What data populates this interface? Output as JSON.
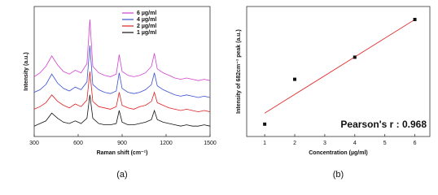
{
  "chart_data": [
    {
      "type": "line",
      "caption": "(a)",
      "xlabel": "Raman shift (cm⁻¹)",
      "ylabel": "Intensity (a.u.)",
      "x": [
        300,
        340,
        380,
        420,
        460,
        500,
        540,
        580,
        620,
        660,
        680,
        700,
        740,
        780,
        820,
        860,
        880,
        900,
        940,
        980,
        1020,
        1060,
        1100,
        1120,
        1140,
        1180,
        1220,
        1260,
        1300,
        1340,
        1380,
        1420,
        1460,
        1500
      ],
      "series": [
        {
          "name": "6 µg/ml",
          "color": "#d040d0",
          "values": [
            46,
            49,
            54,
            62,
            55,
            50,
            48,
            51,
            49,
            56,
            90,
            54,
            49,
            47,
            46,
            48,
            63,
            50,
            47,
            46,
            47,
            49,
            54,
            64,
            52,
            49,
            47,
            45,
            44,
            45,
            44,
            43,
            44,
            43
          ]
        },
        {
          "name": "4 µg/ml",
          "color": "#3a4fd0",
          "values": [
            34,
            36,
            40,
            48,
            41,
            37,
            35,
            38,
            36,
            42,
            70,
            40,
            36,
            34,
            33,
            35,
            49,
            37,
            34,
            33,
            34,
            36,
            40,
            49,
            39,
            36,
            34,
            32,
            31,
            32,
            31,
            30,
            31,
            30
          ]
        },
        {
          "name": "2 µg/ml",
          "color": "#e02020",
          "values": [
            21,
            23,
            26,
            32,
            27,
            24,
            22,
            25,
            23,
            28,
            50,
            27,
            23,
            22,
            21,
            23,
            34,
            24,
            22,
            21,
            23,
            24,
            27,
            34,
            26,
            24,
            22,
            21,
            20,
            21,
            20,
            19,
            20,
            19
          ]
        },
        {
          "name": "1 µg/ml",
          "color": "#111111",
          "values": [
            8,
            10,
            12,
            18,
            14,
            11,
            10,
            12,
            10,
            14,
            32,
            14,
            10,
            9,
            9,
            10,
            20,
            11,
            9,
            9,
            10,
            11,
            13,
            20,
            13,
            11,
            10,
            9,
            8,
            9,
            8,
            8,
            9,
            8
          ]
        }
      ],
      "xlim": [
        300,
        1500
      ],
      "xticks": [
        300,
        600,
        900,
        1200,
        1500
      ],
      "ylim": [
        0,
        100
      ]
    },
    {
      "type": "scatter",
      "caption": "(b)",
      "xlabel": "Concentration (µg/ml)",
      "ylabel": "Intensity of 682cm⁻¹ peak (a.u.)",
      "annotation": "Pearson's r : 0.968",
      "x": [
        1,
        2,
        4,
        6
      ],
      "values": [
        9.5,
        44,
        61,
        90
      ],
      "color": "#111111",
      "fit": {
        "x": [
          1,
          6
        ],
        "values": [
          18,
          90
        ],
        "color": "#e03030"
      },
      "xlim": [
        0.4,
        6.5
      ],
      "xticks": [
        1,
        2,
        3,
        4,
        5,
        6
      ],
      "ylim": [
        0,
        100
      ]
    }
  ]
}
